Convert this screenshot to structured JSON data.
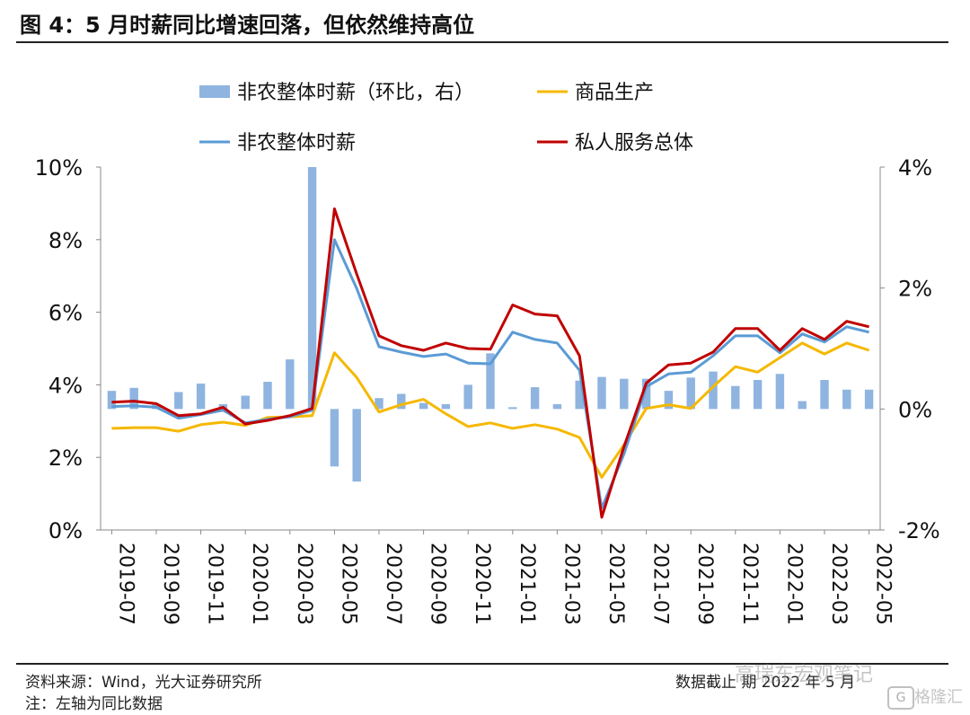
{
  "header": {
    "title": "图 4：5 月时薪同比增速回落，但依然维持高位"
  },
  "footer": {
    "source": "资料来源：Wind，光大证券研究所",
    "note": "注：左轴为同比数据",
    "cutoff": "数据截止   期 2022 年 5 月"
  },
  "watermark": {
    "text": "高瑞东宏观笔记",
    "badge_text": "G",
    "brand_text": "格隆汇"
  },
  "chart_data": {
    "type": "bar+line",
    "x": [
      "2019-07",
      "2019-08",
      "2019-09",
      "2019-10",
      "2019-11",
      "2019-12",
      "2020-01",
      "2020-02",
      "2020-03",
      "2020-04",
      "2020-05",
      "2020-06",
      "2020-07",
      "2020-08",
      "2020-09",
      "2020-10",
      "2020-11",
      "2020-12",
      "2021-01",
      "2021-02",
      "2021-03",
      "2021-04",
      "2021-05",
      "2021-06",
      "2021-07",
      "2021-08",
      "2021-09",
      "2021-10",
      "2021-11",
      "2021-12",
      "2022-01",
      "2022-02",
      "2022-03",
      "2022-04",
      "2022-05"
    ],
    "x_tick_labels": [
      "2019-07",
      "2019-09",
      "2019-11",
      "2020-01",
      "2020-03",
      "2020-05",
      "2020-07",
      "2020-09",
      "2020-11",
      "2021-01",
      "2021-03",
      "2021-05",
      "2021-07",
      "2021-09",
      "2021-11",
      "2022-01",
      "2022-03",
      "2022-05"
    ],
    "left_axis": {
      "ylim": [
        0,
        10
      ],
      "ticks": [
        0,
        2,
        4,
        6,
        8,
        10
      ],
      "tick_labels": [
        "0%",
        "2%",
        "4%",
        "6%",
        "8%",
        "10%"
      ]
    },
    "right_axis": {
      "ylim": [
        -2,
        4
      ],
      "ticks": [
        -2,
        0,
        2,
        4
      ],
      "tick_labels": [
        "-2%",
        "0%",
        "2%",
        "4%"
      ]
    },
    "legend_position": "top",
    "series": [
      {
        "name": "非农整体时薪（环比，右）",
        "type": "bar",
        "axis": "right",
        "color": "#8fb4e0",
        "values": [
          0.3,
          0.35,
          0.08,
          0.28,
          0.42,
          0.08,
          0.22,
          0.45,
          0.82,
          4.0,
          -0.95,
          -1.2,
          0.18,
          0.25,
          0.1,
          0.08,
          0.4,
          0.92,
          0.03,
          0.36,
          0.08,
          0.47,
          0.53,
          0.5,
          0.5,
          0.3,
          0.52,
          0.62,
          0.38,
          0.48,
          0.58,
          0.13,
          0.48,
          0.32,
          0.32
        ]
      },
      {
        "name": "商品生产",
        "type": "line",
        "axis": "left",
        "color": "#f5b800",
        "values": [
          2.8,
          2.82,
          2.82,
          2.72,
          2.9,
          2.97,
          2.88,
          3.1,
          3.12,
          3.15,
          4.88,
          4.2,
          3.25,
          3.45,
          3.6,
          3.2,
          2.85,
          2.95,
          2.8,
          2.9,
          2.78,
          2.55,
          1.45,
          2.35,
          3.35,
          3.45,
          3.35,
          3.95,
          4.5,
          4.35,
          4.75,
          5.15,
          4.85,
          5.15,
          4.95
        ]
      },
      {
        "name": "非农整体时薪",
        "type": "line",
        "axis": "left",
        "color": "#5b9bd5",
        "values": [
          3.4,
          3.42,
          3.38,
          3.08,
          3.18,
          3.3,
          2.95,
          3.05,
          3.12,
          3.3,
          8.0,
          6.65,
          5.05,
          4.9,
          4.78,
          4.85,
          4.6,
          4.58,
          5.45,
          5.25,
          5.15,
          4.4,
          0.6,
          2.1,
          3.95,
          4.3,
          4.35,
          4.8,
          5.35,
          5.35,
          4.88,
          5.4,
          5.18,
          5.6,
          5.45
        ]
      },
      {
        "name": "私人服务总体",
        "type": "line",
        "axis": "left",
        "color": "#c00000",
        "values": [
          3.52,
          3.55,
          3.48,
          3.15,
          3.2,
          3.38,
          2.92,
          3.02,
          3.15,
          3.35,
          8.85,
          7.05,
          5.35,
          5.08,
          4.95,
          5.15,
          5.0,
          4.98,
          6.2,
          5.95,
          5.9,
          4.8,
          0.35,
          2.3,
          4.05,
          4.55,
          4.6,
          4.9,
          5.55,
          5.55,
          4.95,
          5.55,
          5.25,
          5.75,
          5.6
        ]
      }
    ]
  }
}
